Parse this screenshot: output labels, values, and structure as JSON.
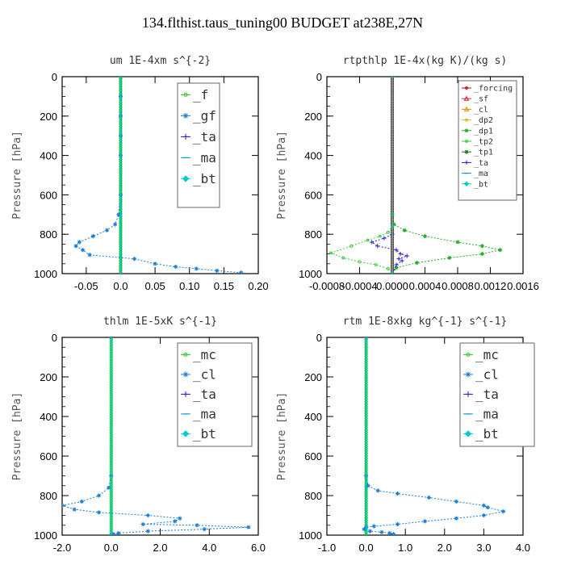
{
  "suptitle": "134.flthist.taus_tuning00  BUDGET at238E,27N",
  "chart_data": [
    {
      "type": "line",
      "title": "um  1E-4xm s^{-2}",
      "ylabel": "Pressure [hPa]",
      "ylim": [
        1000,
        0
      ],
      "xlim": [
        -0.085,
        0.2
      ],
      "xticks": [
        -0.05,
        0.0,
        0.05,
        0.1,
        0.15,
        0.2
      ],
      "xtick_labels": [
        "-0.05",
        "0.0",
        "0.05",
        "0.10",
        "0.15",
        "0.20"
      ],
      "yticks": [
        0,
        200,
        400,
        600,
        800,
        1000
      ],
      "legend_position": "top-right",
      "series": [
        {
          "name": "_f",
          "color": "#22cc22",
          "marker": "circle",
          "x": [
            0.0,
            0.0,
            0.0,
            0.0,
            0.0,
            0.0,
            0.0,
            0.0,
            0.0,
            0.0,
            0.0,
            0.0,
            0.0,
            0.0,
            0.0,
            0.0,
            0.0,
            0.0,
            0.0,
            0.0,
            0.0
          ],
          "y": [
            0,
            50,
            100,
            150,
            200,
            250,
            300,
            350,
            400,
            450,
            500,
            550,
            600,
            650,
            700,
            750,
            800,
            850,
            900,
            950,
            1000
          ]
        },
        {
          "name": "_gf",
          "color": "#1a7fd4",
          "marker": "star",
          "x": [
            0.0,
            0.0,
            0.0,
            0.0,
            0.0,
            0.0,
            -0.003,
            -0.008,
            -0.02,
            -0.04,
            -0.06,
            -0.065,
            -0.055,
            -0.045,
            0.02,
            0.05,
            0.08,
            0.11,
            0.14,
            0.175
          ],
          "y": [
            0,
            100,
            200,
            300,
            400,
            600,
            700,
            750,
            780,
            810,
            840,
            860,
            880,
            905,
            925,
            950,
            965,
            975,
            985,
            995
          ]
        },
        {
          "name": "_ta",
          "color": "#2222cc",
          "marker": "plus",
          "x": [
            0.0,
            0.0,
            0.0,
            0.0
          ],
          "y": [
            0,
            400,
            800,
            1000
          ]
        },
        {
          "name": "_ma",
          "color": "#0099cc",
          "marker": "dash",
          "x": [
            0.0,
            0.0,
            0.0,
            0.0
          ],
          "y": [
            0,
            400,
            800,
            1000
          ]
        },
        {
          "name": "_bt",
          "color": "#00cccc",
          "marker": "diamond",
          "x": [
            0.0,
            0.0,
            0.0,
            0.0
          ],
          "y": [
            0,
            400,
            800,
            1000
          ]
        }
      ]
    },
    {
      "type": "line",
      "title": "rtpthlp  1E-4x(kg K)/(kg s)",
      "ylabel": "Pressure [hPa]",
      "ylim": [
        1000,
        0
      ],
      "xlim": [
        -0.0008,
        0.0016
      ],
      "xticks": [
        -0.0008,
        -0.0004,
        0.0,
        0.0004,
        0.0008,
        0.0012,
        0.0016
      ],
      "xtick_labels": [
        "-0.0008",
        "-0.0004",
        "0.0000",
        "0.0004",
        "0.0008",
        "0.0012",
        "0.0016"
      ],
      "yticks": [
        0,
        200,
        400,
        600,
        800,
        1000
      ],
      "legend_position": "top-right",
      "series": [
        {
          "name": "_forcing",
          "color": "#cc0000",
          "marker": "circle",
          "x": [
            0,
            0,
            0,
            0,
            0,
            0,
            0,
            0,
            0,
            0,
            0
          ],
          "y": [
            0,
            100,
            200,
            300,
            400,
            500,
            600,
            700,
            800,
            900,
            1000
          ]
        },
        {
          "name": "_sf",
          "color": "#dd2222",
          "marker": "triangle",
          "x": [
            0,
            0,
            0,
            0
          ],
          "y": [
            0,
            400,
            800,
            1000
          ]
        },
        {
          "name": "_cl",
          "color": "#ee8800",
          "marker": "triangle",
          "x": [
            0,
            0,
            0,
            0
          ],
          "y": [
            0,
            400,
            800,
            1000
          ]
        },
        {
          "name": "_dp2",
          "color": "#ddbb00",
          "marker": "circle",
          "x": [
            0,
            0,
            0,
            0
          ],
          "y": [
            0,
            400,
            800,
            1000
          ]
        },
        {
          "name": "_dp1",
          "color": "#22aa22",
          "marker": "star",
          "x": [
            0,
            0,
            2e-05,
            0.00015,
            0.0004,
            0.0008,
            0.0011,
            0.00132,
            0.0011,
            0.0007,
            0.0003,
            5e-05,
            0
          ],
          "y": [
            0,
            700,
            750,
            780,
            810,
            840,
            860,
            880,
            900,
            920,
            945,
            970,
            1000
          ]
        },
        {
          "name": "_tp2",
          "color": "#33cc33",
          "marker": "circle",
          "x": [
            0,
            0,
            -5e-05,
            -0.00015,
            -0.0003,
            -0.0005,
            -0.00075,
            -0.0006,
            -0.0004,
            -0.0002,
            -5e-05,
            0
          ],
          "y": [
            0,
            760,
            790,
            810,
            830,
            860,
            895,
            920,
            940,
            955,
            975,
            1000
          ]
        },
        {
          "name": "_tp1",
          "color": "#117711",
          "marker": "x",
          "x": [
            0,
            0,
            0
          ],
          "y": [
            0,
            500,
            1000
          ]
        },
        {
          "name": "_ta",
          "color": "#2222cc",
          "marker": "plus",
          "x": [
            0,
            0,
            -0.0001,
            -0.00025,
            -0.00018,
            5e-05,
            0.0001,
            0.00018,
            8e-05,
            0.00012,
            5e-05,
            0
          ],
          "y": [
            0,
            800,
            820,
            840,
            860,
            880,
            900,
            910,
            925,
            935,
            955,
            1000
          ]
        },
        {
          "name": "_ma",
          "color": "#0099cc",
          "marker": "dash",
          "x": [
            0,
            0,
            0
          ],
          "y": [
            0,
            500,
            1000
          ]
        },
        {
          "name": "_bt",
          "color": "#00cccc",
          "marker": "diamond",
          "x": [
            0,
            0,
            0
          ],
          "y": [
            0,
            500,
            1000
          ]
        }
      ]
    },
    {
      "type": "line",
      "title": "thlm  1E-5xK s^{-1}",
      "ylabel": "Pressure [hPa]",
      "ylim": [
        1000,
        0
      ],
      "xlim": [
        -2.0,
        6.0
      ],
      "xticks": [
        -2.0,
        0.0,
        2.0,
        4.0,
        6.0
      ],
      "xtick_labels": [
        "-2.0",
        "0.0",
        "2.0",
        "4.0",
        "6.0"
      ],
      "yticks": [
        0,
        200,
        400,
        600,
        800,
        1000
      ],
      "legend_position": "top-right",
      "series": [
        {
          "name": "_mc",
          "color": "#22cc22",
          "marker": "circle",
          "x": [
            0,
            0,
            0,
            0,
            0,
            0,
            0,
            0,
            0,
            0,
            0,
            0,
            0,
            0,
            0,
            0,
            0,
            0,
            0,
            0,
            0
          ],
          "y": [
            0,
            50,
            100,
            150,
            200,
            250,
            300,
            350,
            400,
            450,
            500,
            550,
            600,
            650,
            700,
            750,
            800,
            850,
            900,
            950,
            1000
          ]
        },
        {
          "name": "_cl",
          "color": "#1a7fd4",
          "marker": "star",
          "x": [
            0,
            0,
            -0.1,
            -0.5,
            -1.2,
            -2.0,
            -1.5,
            -0.5,
            1.5,
            2.8,
            2.6,
            1.3,
            3.5,
            5.6,
            3.8,
            1.5,
            0.3,
            0.1,
            0
          ],
          "y": [
            0,
            700,
            760,
            800,
            830,
            850,
            870,
            885,
            900,
            915,
            930,
            945,
            950,
            960,
            970,
            980,
            990,
            995,
            1000
          ]
        },
        {
          "name": "_ta",
          "color": "#2222cc",
          "marker": "plus",
          "x": [
            0,
            0,
            0
          ],
          "y": [
            0,
            500,
            1000
          ]
        },
        {
          "name": "_ma",
          "color": "#0099cc",
          "marker": "dash",
          "x": [
            0,
            0,
            0
          ],
          "y": [
            0,
            500,
            1000
          ]
        },
        {
          "name": "_bt",
          "color": "#00cccc",
          "marker": "diamond",
          "x": [
            0,
            0,
            0
          ],
          "y": [
            0,
            500,
            1000
          ]
        }
      ]
    },
    {
      "type": "line",
      "title": "rtm  1E-8xkg kg^{-1} s^{-1}",
      "ylabel": "Pressure [hPa]",
      "ylim": [
        1000,
        0
      ],
      "xlim": [
        -1.0,
        4.0
      ],
      "xticks": [
        -1.0,
        0.0,
        1.0,
        2.0,
        3.0,
        4.0
      ],
      "xtick_labels": [
        "-1.0",
        "0.0",
        "1.0",
        "2.0",
        "3.0",
        "4.0"
      ],
      "yticks": [
        0,
        200,
        400,
        600,
        800,
        1000
      ],
      "legend_position": "top-right",
      "series": [
        {
          "name": "_mc",
          "color": "#22cc22",
          "marker": "circle",
          "x": [
            0,
            0,
            0,
            0,
            0,
            0,
            0,
            0,
            0,
            0,
            0,
            0,
            0,
            0,
            0,
            0,
            0,
            0,
            0,
            0,
            0
          ],
          "y": [
            0,
            50,
            100,
            150,
            200,
            250,
            300,
            350,
            400,
            450,
            500,
            550,
            600,
            650,
            700,
            750,
            800,
            850,
            900,
            950,
            1000
          ]
        },
        {
          "name": "_cl",
          "color": "#1a7fd4",
          "marker": "star",
          "x": [
            0,
            0,
            0.05,
            0.3,
            0.8,
            1.6,
            2.3,
            3.0,
            3.1,
            3.5,
            3.0,
            2.3,
            1.5,
            0.8,
            0.2,
            0,
            -0.05,
            0.1,
            0.4,
            0.6,
            0.7
          ],
          "y": [
            0,
            700,
            750,
            775,
            790,
            810,
            830,
            850,
            860,
            880,
            900,
            915,
            930,
            945,
            955,
            960,
            970,
            980,
            985,
            990,
            995
          ]
        },
        {
          "name": "_ta",
          "color": "#2222cc",
          "marker": "plus",
          "x": [
            0,
            0,
            0
          ],
          "y": [
            0,
            500,
            1000
          ]
        },
        {
          "name": "_ma",
          "color": "#0099cc",
          "marker": "dash",
          "x": [
            0,
            0,
            0
          ],
          "y": [
            0,
            500,
            1000
          ]
        },
        {
          "name": "_bt",
          "color": "#00cccc",
          "marker": "diamond",
          "x": [
            0,
            0,
            0
          ],
          "y": [
            0,
            500,
            1000
          ]
        }
      ]
    }
  ]
}
